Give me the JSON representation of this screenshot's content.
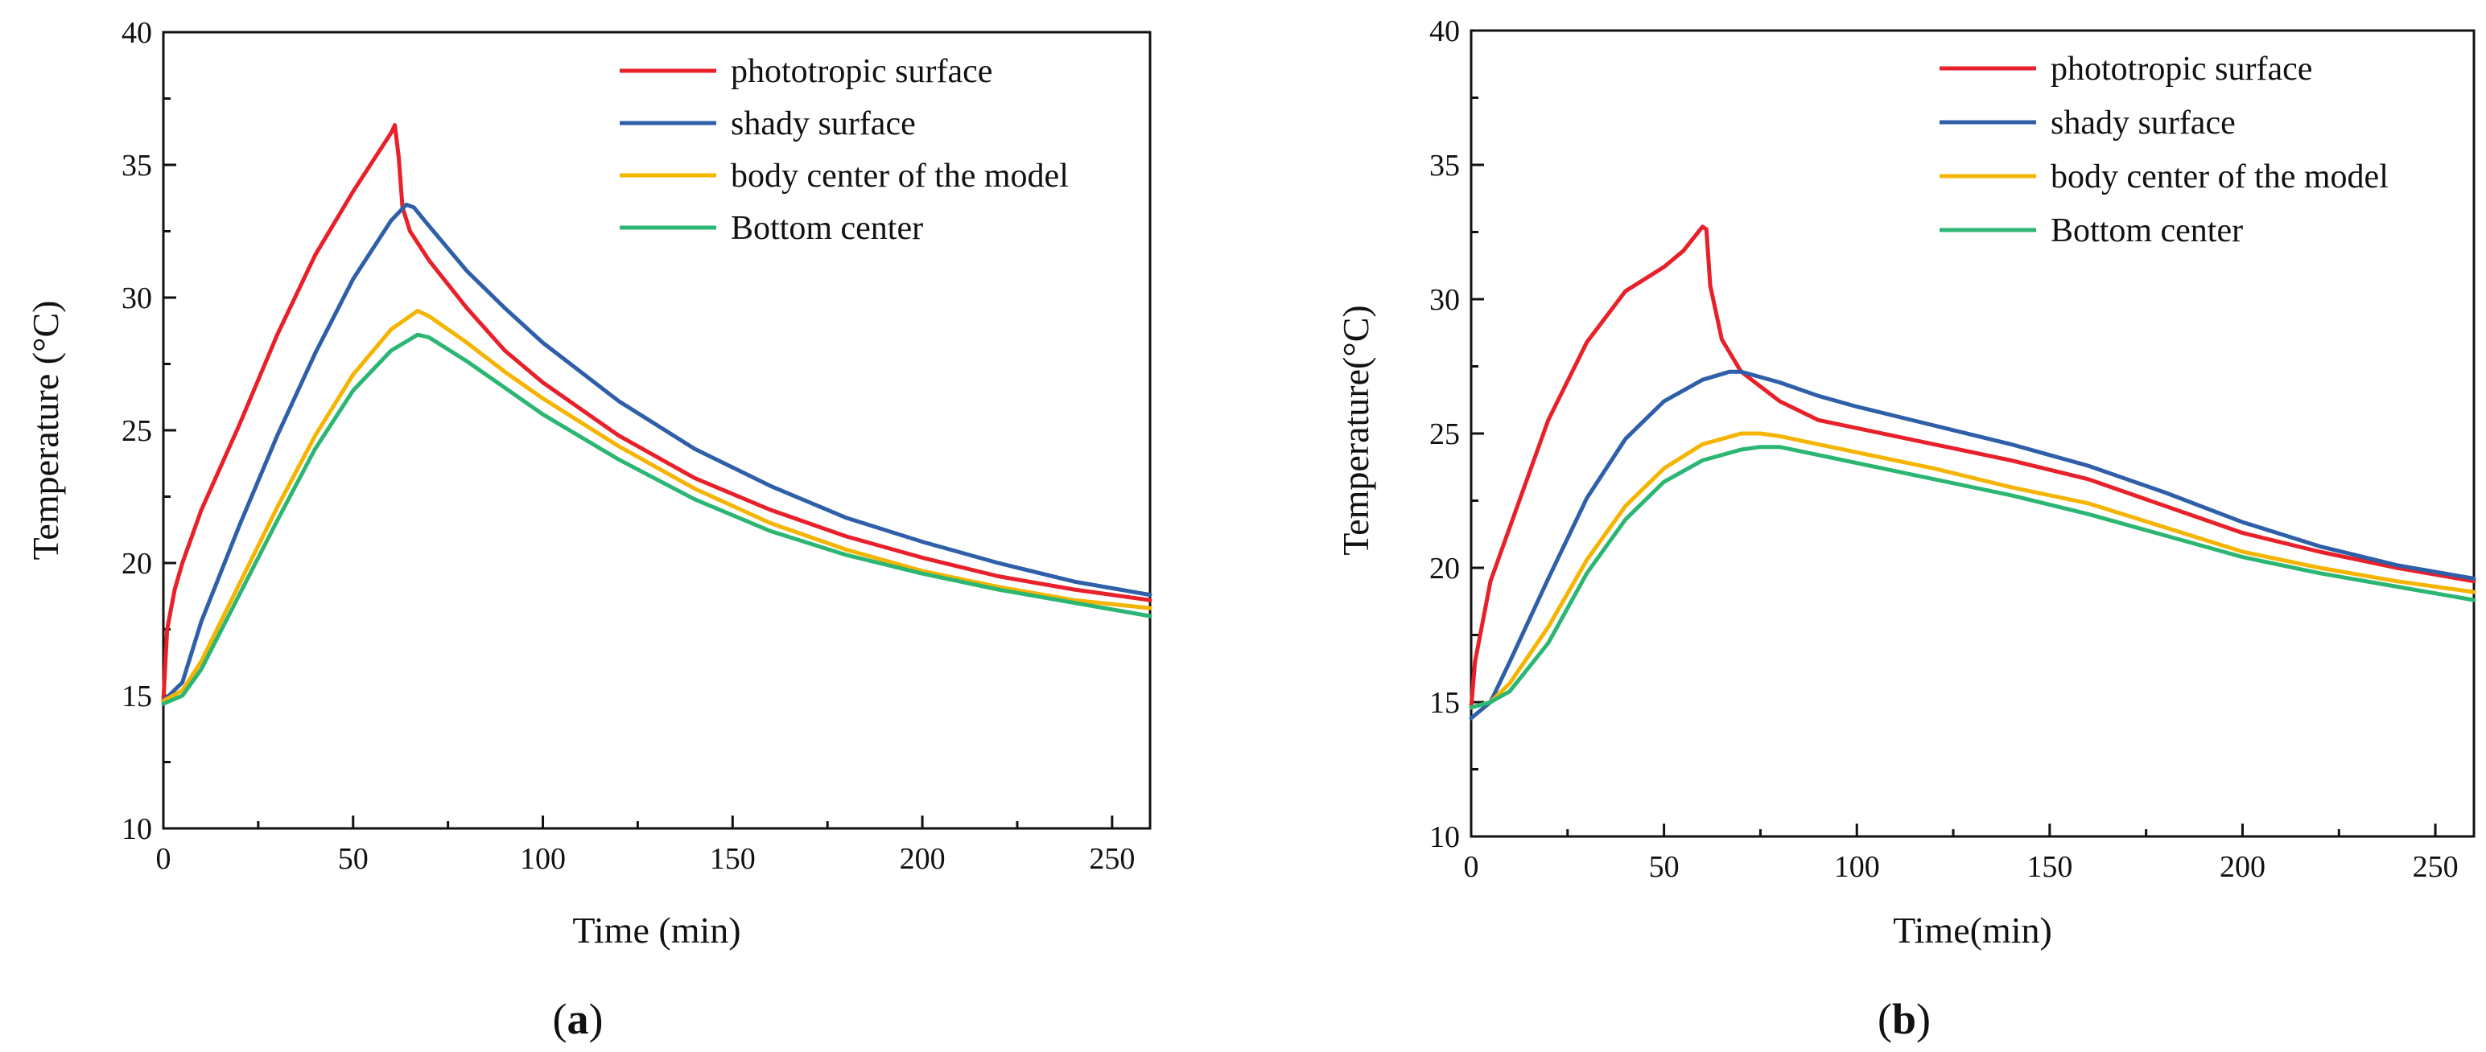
{
  "chart_data": [
    {
      "type": "line",
      "caption": "a",
      "xlabel": "Time (min)",
      "ylabel": "Temperature (°C)",
      "xlim": [
        0,
        260
      ],
      "ylim": [
        10,
        40
      ],
      "xticks": [
        0,
        50,
        100,
        150,
        200,
        250
      ],
      "yticks": [
        10,
        15,
        20,
        25,
        30,
        35,
        40
      ],
      "legend_position": "top-right",
      "series": [
        {
          "name": "phototropic surface",
          "color": "#e8202a",
          "x": [
            0,
            1,
            3,
            5,
            10,
            20,
            30,
            40,
            50,
            55,
            60,
            61,
            62,
            63,
            65,
            70,
            80,
            90,
            100,
            120,
            140,
            160,
            180,
            200,
            220,
            240,
            260
          ],
          "y": [
            14.8,
            17.5,
            19.0,
            20.0,
            22.0,
            25.2,
            28.6,
            31.6,
            34.0,
            35.1,
            36.2,
            36.5,
            35.3,
            33.4,
            32.5,
            31.4,
            29.6,
            28.0,
            26.8,
            24.8,
            23.2,
            22.0,
            21.0,
            20.2,
            19.5,
            19.0,
            18.6
          ]
        },
        {
          "name": "shady surface",
          "color": "#2e5fa8",
          "x": [
            0,
            5,
            10,
            20,
            30,
            40,
            50,
            60,
            64,
            66,
            70,
            80,
            90,
            100,
            120,
            140,
            160,
            180,
            200,
            220,
            240,
            260
          ],
          "y": [
            14.8,
            15.5,
            17.8,
            21.4,
            24.8,
            27.9,
            30.7,
            32.9,
            33.5,
            33.4,
            32.7,
            31.0,
            29.6,
            28.3,
            26.1,
            24.3,
            22.9,
            21.7,
            20.8,
            20.0,
            19.3,
            18.8
          ]
        },
        {
          "name": "body center of the model",
          "color": "#f5b400",
          "x": [
            0,
            5,
            10,
            20,
            30,
            40,
            50,
            60,
            67,
            70,
            80,
            90,
            100,
            120,
            140,
            160,
            180,
            200,
            220,
            240,
            260
          ],
          "y": [
            14.8,
            15.2,
            16.3,
            19.2,
            22.1,
            24.8,
            27.1,
            28.8,
            29.5,
            29.3,
            28.3,
            27.2,
            26.2,
            24.4,
            22.8,
            21.5,
            20.5,
            19.7,
            19.1,
            18.6,
            18.3
          ]
        },
        {
          "name": "Bottom center",
          "color": "#2bb673",
          "x": [
            0,
            5,
            10,
            20,
            30,
            40,
            50,
            60,
            67,
            70,
            80,
            90,
            100,
            120,
            140,
            160,
            180,
            200,
            220,
            240,
            260
          ],
          "y": [
            14.7,
            15.0,
            16.0,
            18.8,
            21.6,
            24.3,
            26.5,
            28.0,
            28.6,
            28.5,
            27.6,
            26.6,
            25.6,
            23.9,
            22.4,
            21.2,
            20.3,
            19.6,
            19.0,
            18.5,
            18.0
          ]
        }
      ]
    },
    {
      "type": "line",
      "caption": "b",
      "xlabel": "Time(min)",
      "ylabel": "Temperature(°C)",
      "xlim": [
        0,
        260
      ],
      "ylim": [
        10,
        40
      ],
      "xticks": [
        0,
        50,
        100,
        150,
        200,
        250
      ],
      "yticks": [
        10,
        15,
        20,
        25,
        30,
        35,
        40
      ],
      "legend_position": "top-right",
      "series": [
        {
          "name": "phototropic surface",
          "color": "#e8202a",
          "x": [
            0,
            1,
            3,
            5,
            10,
            20,
            30,
            40,
            50,
            55,
            60,
            61,
            62,
            65,
            70,
            80,
            90,
            100,
            120,
            140,
            160,
            180,
            200,
            220,
            240,
            260
          ],
          "y": [
            14.8,
            16.5,
            18.0,
            19.5,
            21.5,
            25.5,
            28.4,
            30.3,
            31.2,
            31.8,
            32.7,
            32.6,
            30.5,
            28.5,
            27.3,
            26.2,
            25.5,
            25.2,
            24.6,
            24.0,
            23.3,
            22.3,
            21.3,
            20.6,
            20.0,
            19.5
          ]
        },
        {
          "name": "shady surface",
          "color": "#2e5fa8",
          "x": [
            0,
            5,
            10,
            20,
            30,
            40,
            50,
            60,
            67,
            70,
            80,
            90,
            100,
            120,
            140,
            160,
            180,
            200,
            220,
            240,
            260
          ],
          "y": [
            14.4,
            15.0,
            16.5,
            19.6,
            22.6,
            24.8,
            26.2,
            27.0,
            27.3,
            27.3,
            26.9,
            26.4,
            26.0,
            25.3,
            24.6,
            23.8,
            22.8,
            21.7,
            20.8,
            20.1,
            19.6
          ]
        },
        {
          "name": "body center of the model",
          "color": "#f5b400",
          "x": [
            0,
            5,
            10,
            20,
            30,
            40,
            50,
            60,
            70,
            75,
            80,
            90,
            100,
            120,
            140,
            160,
            180,
            200,
            220,
            240,
            260
          ],
          "y": [
            14.8,
            15.0,
            15.7,
            17.8,
            20.3,
            22.3,
            23.7,
            24.6,
            25.0,
            25.0,
            24.9,
            24.6,
            24.3,
            23.7,
            23.0,
            22.4,
            21.5,
            20.6,
            20.0,
            19.5,
            19.1
          ]
        },
        {
          "name": "Bottom center",
          "color": "#2bb673",
          "x": [
            0,
            5,
            10,
            20,
            30,
            40,
            50,
            60,
            70,
            75,
            80,
            90,
            100,
            120,
            140,
            160,
            180,
            200,
            220,
            240,
            260
          ],
          "y": [
            14.8,
            15.0,
            15.4,
            17.2,
            19.8,
            21.8,
            23.2,
            24.0,
            24.4,
            24.5,
            24.5,
            24.2,
            23.9,
            23.3,
            22.7,
            22.0,
            21.2,
            20.4,
            19.8,
            19.3,
            18.8
          ]
        }
      ]
    }
  ]
}
